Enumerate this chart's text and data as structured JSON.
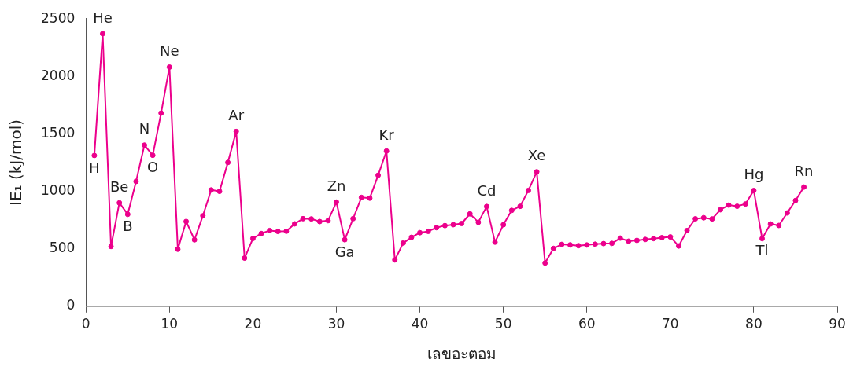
{
  "chart_data": {
    "type": "line",
    "xlabel": "เลขอะตอม",
    "ylabel": "IE₁ (kJ/mol)",
    "x": [
      1,
      2,
      3,
      4,
      5,
      6,
      7,
      8,
      9,
      10,
      11,
      12,
      13,
      14,
      15,
      16,
      17,
      18,
      19,
      20,
      21,
      22,
      23,
      24,
      25,
      26,
      27,
      28,
      29,
      30,
      31,
      32,
      33,
      34,
      35,
      36,
      37,
      38,
      39,
      40,
      41,
      42,
      43,
      44,
      45,
      46,
      47,
      48,
      49,
      50,
      51,
      52,
      53,
      54,
      55,
      56,
      57,
      58,
      59,
      60,
      61,
      62,
      63,
      64,
      65,
      66,
      67,
      68,
      69,
      70,
      71,
      72,
      73,
      74,
      75,
      76,
      77,
      78,
      79,
      80,
      81,
      82,
      83,
      84,
      85,
      86
    ],
    "series": [
      {
        "color": "#ec008c",
        "values": [
          1312,
          2372,
          520,
          900,
          800,
          1086,
          1402,
          1314,
          1681,
          2081,
          496,
          738,
          578,
          787,
          1012,
          1000,
          1251,
          1521,
          419,
          590,
          633,
          659,
          651,
          653,
          717,
          762,
          760,
          737,
          745,
          906,
          579,
          762,
          947,
          941,
          1140,
          1351,
          403,
          550,
          600,
          640,
          652,
          684,
          702,
          710,
          720,
          804,
          731,
          868,
          558,
          709,
          834,
          869,
          1008,
          1170,
          376,
          503,
          538,
          534,
          527,
          533,
          540,
          545,
          547,
          593,
          566,
          573,
          581,
          589,
          597,
          603,
          524,
          659,
          761,
          770,
          760,
          840,
          880,
          870,
          890,
          1007,
          589,
          716,
          703,
          812,
          920,
          1037
        ]
      }
    ],
    "xlim": [
      0,
      90
    ],
    "xticks": [
      0,
      10,
      20,
      30,
      40,
      50,
      60,
      70,
      80,
      90
    ],
    "ylim": [
      0,
      2500
    ],
    "yticks": [
      0,
      500,
      1000,
      1500,
      2000,
      2500
    ],
    "grid": false,
    "legend": false,
    "marker": "circle",
    "line_style": "solid",
    "annotations": [
      {
        "text": "H",
        "x": 1,
        "y": 1312
      },
      {
        "text": "He",
        "x": 2,
        "y": 2372
      },
      {
        "text": "Be",
        "x": 4,
        "y": 900
      },
      {
        "text": "B",
        "x": 5,
        "y": 800
      },
      {
        "text": "N",
        "x": 7,
        "y": 1402
      },
      {
        "text": "O",
        "x": 8,
        "y": 1314
      },
      {
        "text": "Ne",
        "x": 10,
        "y": 2081
      },
      {
        "text": "Ar",
        "x": 18,
        "y": 1521
      },
      {
        "text": "Zn",
        "x": 30,
        "y": 906
      },
      {
        "text": "Ga",
        "x": 31,
        "y": 579
      },
      {
        "text": "Kr",
        "x": 36,
        "y": 1351
      },
      {
        "text": "Cd",
        "x": 48,
        "y": 868
      },
      {
        "text": "Xe",
        "x": 54,
        "y": 1170
      },
      {
        "text": "Hg",
        "x": 80,
        "y": 1007
      },
      {
        "text": "Tl",
        "x": 81,
        "y": 589
      },
      {
        "text": "Rn",
        "x": 86,
        "y": 1037
      }
    ]
  }
}
